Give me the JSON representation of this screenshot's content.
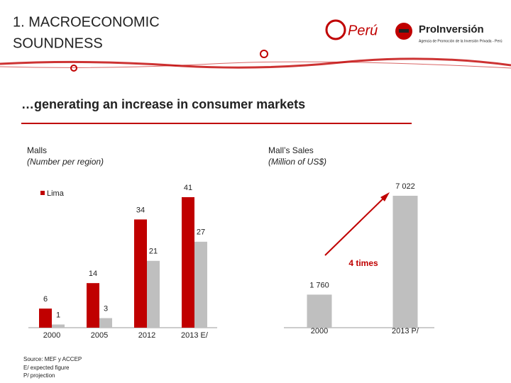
{
  "header": {
    "title_line1": "1. MACROECONOMIC",
    "title_line2": "SOUNDNESS",
    "logo_peru": "Perú",
    "logo_proinversion": "ProInversión",
    "logo_tagline": "Agencia de Promoción de la Inversión Privada - Perú"
  },
  "subtitle": "…generating an increase in consumer markets",
  "chart_data": [
    {
      "type": "bar",
      "title": "Malls",
      "subtitle": "(Number per region)",
      "categories": [
        "2000",
        "2005",
        "2012",
        "2013 E/"
      ],
      "series": [
        {
          "name": "Lima",
          "color": "#c00000",
          "values": [
            6,
            14,
            34,
            41
          ]
        },
        {
          "color": "#bfbfbf",
          "values": [
            1,
            3,
            21,
            27
          ]
        }
      ]
    },
    {
      "type": "bar",
      "title": "Mall’s Sales",
      "subtitle": "(Million of US$)",
      "categories": [
        "2000",
        "2013 P/"
      ],
      "values": [
        1760,
        7022
      ],
      "value_labels": [
        "1 760",
        "7 022"
      ],
      "color": "#bfbfbf",
      "annotation": "4 times",
      "annotation_color": "#c00000"
    }
  ],
  "notes": [
    "Source: MEF y ACCEP",
    "E/ expected figure",
    "P/ projection"
  ]
}
